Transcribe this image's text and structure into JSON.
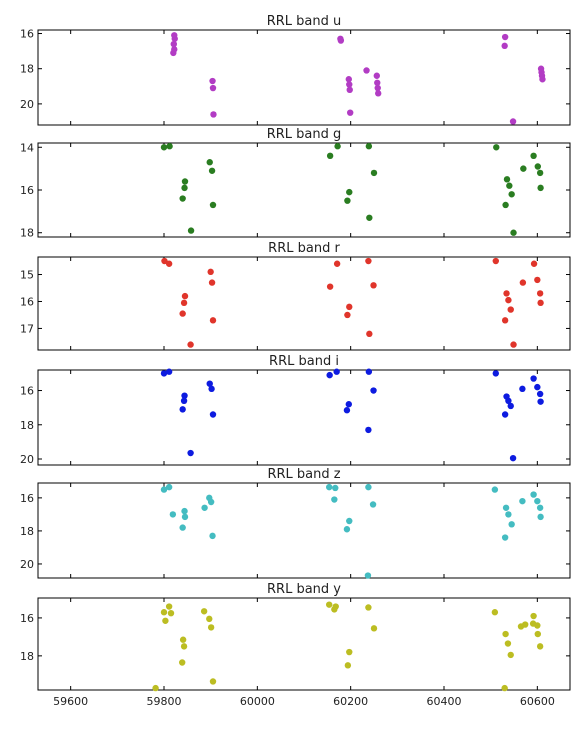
{
  "chart_data": [
    {
      "type": "scatter",
      "title": "RRL band u",
      "color": "#b23cc4",
      "ylim": [
        21.2,
        15.8
      ],
      "yticks": [
        16,
        18,
        20
      ],
      "xlim": [
        59530,
        60670
      ],
      "xticks": [
        59600,
        59800,
        60000,
        60200,
        60400,
        60600
      ],
      "show_xticklabels": false,
      "points": [
        [
          59822,
          16.1
        ],
        [
          59823,
          16.3
        ],
        [
          59821,
          16.6
        ],
        [
          59822,
          16.9
        ],
        [
          59820,
          17.1
        ],
        [
          59904,
          18.7
        ],
        [
          59905,
          19.1
        ],
        [
          59906,
          20.6
        ],
        [
          60178,
          16.3
        ],
        [
          60179,
          16.4
        ],
        [
          60196,
          18.6
        ],
        [
          60197,
          18.9
        ],
        [
          60198,
          19.2
        ],
        [
          60199,
          20.5
        ],
        [
          60234,
          18.1
        ],
        [
          60256,
          18.4
        ],
        [
          60257,
          18.8
        ],
        [
          60258,
          19.1
        ],
        [
          60259,
          19.4
        ],
        [
          60531,
          16.2
        ],
        [
          60530,
          16.7
        ],
        [
          60548,
          21.0
        ],
        [
          60608,
          18.0
        ],
        [
          60609,
          18.2
        ],
        [
          60610,
          18.4
        ],
        [
          60611,
          18.6
        ]
      ]
    },
    {
      "type": "scatter",
      "title": "RRL band g",
      "color": "#2a7d21",
      "ylim": [
        18.2,
        13.8
      ],
      "yticks": [
        14,
        16,
        18
      ],
      "xlim": [
        59530,
        60670
      ],
      "xticks": [
        59600,
        59800,
        60000,
        60200,
        60400,
        60600
      ],
      "show_xticklabels": false,
      "points": [
        [
          59800,
          14.0
        ],
        [
          59812,
          13.95
        ],
        [
          59840,
          16.4
        ],
        [
          59844,
          15.9
        ],
        [
          59845,
          15.6
        ],
        [
          59858,
          17.9
        ],
        [
          59898,
          14.7
        ],
        [
          59903,
          15.1
        ],
        [
          59905,
          16.7
        ],
        [
          60156,
          14.4
        ],
        [
          60172,
          13.95
        ],
        [
          60193,
          16.5
        ],
        [
          60197,
          16.1
        ],
        [
          60239,
          13.95
        ],
        [
          60240,
          17.3
        ],
        [
          60250,
          15.2
        ],
        [
          60512,
          14.0
        ],
        [
          60532,
          16.7
        ],
        [
          60535,
          15.5
        ],
        [
          60540,
          15.8
        ],
        [
          60545,
          16.2
        ],
        [
          60549,
          18.0
        ],
        [
          60570,
          15.0
        ],
        [
          60592,
          14.4
        ],
        [
          60601,
          14.9
        ],
        [
          60606,
          15.2
        ],
        [
          60607,
          15.9
        ]
      ]
    },
    {
      "type": "scatter",
      "title": "RRL band r",
      "color": "#e0352b",
      "ylim": [
        17.8,
        14.35
      ],
      "yticks": [
        15,
        16,
        17
      ],
      "xlim": [
        59530,
        60670
      ],
      "xticks": [
        59600,
        59800,
        60000,
        60200,
        60400,
        60600
      ],
      "show_xticklabels": false,
      "points": [
        [
          59801,
          14.5
        ],
        [
          59811,
          14.6
        ],
        [
          59840,
          16.45
        ],
        [
          59843,
          16.05
        ],
        [
          59845,
          15.8
        ],
        [
          59857,
          17.6
        ],
        [
          59900,
          14.9
        ],
        [
          59903,
          15.3
        ],
        [
          59905,
          16.7
        ],
        [
          60156,
          15.45
        ],
        [
          60171,
          14.6
        ],
        [
          60193,
          16.5
        ],
        [
          60197,
          16.2
        ],
        [
          60238,
          14.5
        ],
        [
          60240,
          17.2
        ],
        [
          60249,
          15.4
        ],
        [
          60511,
          14.5
        ],
        [
          60531,
          16.7
        ],
        [
          60534,
          15.7
        ],
        [
          60538,
          15.95
        ],
        [
          60543,
          16.3
        ],
        [
          60549,
          17.6
        ],
        [
          60569,
          15.3
        ],
        [
          60593,
          14.6
        ],
        [
          60600,
          15.2
        ],
        [
          60606,
          15.7
        ],
        [
          60607,
          16.05
        ]
      ]
    },
    {
      "type": "scatter",
      "title": "RRL band i",
      "color": "#0d1be0",
      "ylim": [
        20.35,
        14.8
      ],
      "yticks": [
        16,
        18,
        20
      ],
      "xlim": [
        59530,
        60670
      ],
      "xticks": [
        59600,
        59800,
        60000,
        60200,
        60400,
        60600
      ],
      "show_xticklabels": false,
      "points": [
        [
          59800,
          15.0
        ],
        [
          59811,
          14.9
        ],
        [
          59840,
          17.1
        ],
        [
          59843,
          16.6
        ],
        [
          59844,
          16.3
        ],
        [
          59857,
          19.65
        ],
        [
          59898,
          15.6
        ],
        [
          59902,
          15.9
        ],
        [
          59905,
          17.4
        ],
        [
          60155,
          15.1
        ],
        [
          60170,
          14.9
        ],
        [
          60192,
          17.15
        ],
        [
          60196,
          16.8
        ],
        [
          60239,
          14.9
        ],
        [
          60238,
          18.3
        ],
        [
          60249,
          16.0
        ],
        [
          60511,
          15.0
        ],
        [
          60531,
          17.4
        ],
        [
          60534,
          16.35
        ],
        [
          60538,
          16.6
        ],
        [
          60543,
          16.9
        ],
        [
          60548,
          19.95
        ],
        [
          60568,
          15.9
        ],
        [
          60592,
          15.3
        ],
        [
          60600,
          15.8
        ],
        [
          60606,
          16.2
        ],
        [
          60607,
          16.65
        ]
      ]
    },
    {
      "type": "scatter",
      "title": "RRL band z",
      "color": "#44bcc1",
      "ylim": [
        20.85,
        15.1
      ],
      "yticks": [
        16,
        18,
        20
      ],
      "xlim": [
        59530,
        60670
      ],
      "xticks": [
        59600,
        59800,
        60000,
        60200,
        60400,
        60600
      ],
      "show_xticklabels": false,
      "points": [
        [
          59800,
          15.5
        ],
        [
          59811,
          15.35
        ],
        [
          59819,
          17.0
        ],
        [
          59840,
          17.8
        ],
        [
          59844,
          16.8
        ],
        [
          59845,
          17.15
        ],
        [
          59887,
          16.6
        ],
        [
          59897,
          16.0
        ],
        [
          59901,
          16.25
        ],
        [
          59904,
          18.3
        ],
        [
          60154,
          15.35
        ],
        [
          60167,
          15.4
        ],
        [
          60165,
          16.1
        ],
        [
          60192,
          17.9
        ],
        [
          60197,
          17.4
        ],
        [
          60238,
          15.35
        ],
        [
          60237,
          20.7
        ],
        [
          60248,
          16.4
        ],
        [
          60509,
          15.5
        ],
        [
          60531,
          18.4
        ],
        [
          60533,
          16.6
        ],
        [
          60538,
          17.0
        ],
        [
          60545,
          17.6
        ],
        [
          60568,
          16.2
        ],
        [
          60592,
          15.8
        ],
        [
          60600,
          16.2
        ],
        [
          60606,
          16.6
        ],
        [
          60607,
          17.15
        ]
      ]
    },
    {
      "type": "scatter",
      "title": "RRL band y",
      "color": "#bcbd22",
      "ylim": [
        19.8,
        14.95
      ],
      "yticks": [
        16,
        18
      ],
      "xlim": [
        59530,
        60670
      ],
      "xticks": [
        59600,
        59800,
        60000,
        60200,
        60400,
        60600
      ],
      "show_xticklabels": true,
      "points": [
        [
          59782,
          19.7
        ],
        [
          59800,
          15.7
        ],
        [
          59803,
          16.15
        ],
        [
          59811,
          15.4
        ],
        [
          59815,
          15.75
        ],
        [
          59839,
          18.35
        ],
        [
          59841,
          17.15
        ],
        [
          59843,
          17.5
        ],
        [
          59886,
          15.65
        ],
        [
          59897,
          16.05
        ],
        [
          59901,
          16.5
        ],
        [
          59905,
          19.35
        ],
        [
          60154,
          15.3
        ],
        [
          60165,
          15.55
        ],
        [
          60168,
          15.4
        ],
        [
          60194,
          18.5
        ],
        [
          60197,
          17.8
        ],
        [
          60238,
          15.45
        ],
        [
          60250,
          16.55
        ],
        [
          60509,
          15.7
        ],
        [
          60530,
          19.7
        ],
        [
          60532,
          16.85
        ],
        [
          60537,
          17.35
        ],
        [
          60543,
          17.95
        ],
        [
          60565,
          16.45
        ],
        [
          60574,
          16.35
        ],
        [
          60591,
          16.3
        ],
        [
          60592,
          15.9
        ],
        [
          60600,
          16.4
        ],
        [
          60601,
          16.85
        ],
        [
          60606,
          17.5
        ]
      ]
    }
  ]
}
